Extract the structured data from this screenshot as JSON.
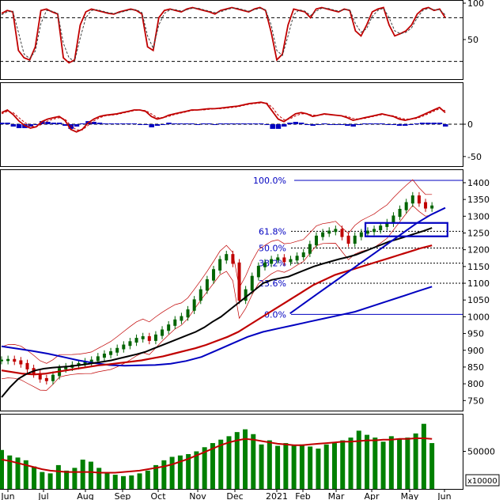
{
  "chart_data": [
    {
      "type": "line",
      "panel": "stochastic-oscillator",
      "ylim": [
        0,
        100
      ],
      "y_ticks": [
        50,
        100
      ],
      "reference_levels": [
        20,
        80
      ],
      "series": [
        {
          "color": "#c00000",
          "values": [
            86,
            90,
            88,
            35,
            25,
            22,
            40,
            90,
            92,
            88,
            85,
            25,
            18,
            22,
            70,
            88,
            92,
            90,
            88,
            86,
            85,
            88,
            90,
            92,
            90,
            85,
            40,
            35,
            80,
            90,
            92,
            90,
            88,
            92,
            94,
            92,
            90,
            88,
            85,
            90,
            92,
            94,
            92,
            90,
            88,
            92,
            94,
            90,
            60,
            22,
            30,
            70,
            92,
            90,
            88,
            80,
            92,
            94,
            92,
            90,
            88,
            92,
            90,
            62,
            55,
            70,
            88,
            92,
            94,
            70,
            55,
            58,
            62,
            70,
            85,
            92,
            94,
            90,
            92,
            80
          ]
        },
        {
          "color": "#404040",
          "dash": true,
          "values": [
            84,
            88,
            89,
            60,
            30,
            24,
            34,
            72,
            90,
            89,
            86,
            45,
            25,
            20,
            52,
            80,
            90,
            91,
            89,
            87,
            86,
            87,
            89,
            91,
            91,
            87,
            55,
            38,
            70,
            86,
            91,
            91,
            89,
            91,
            93,
            93,
            91,
            89,
            87,
            88,
            91,
            93,
            93,
            91,
            89,
            91,
            93,
            91,
            70,
            35,
            28,
            55,
            84,
            91,
            89,
            83,
            89,
            93,
            93,
            91,
            89,
            91,
            91,
            72,
            60,
            65,
            82,
            90,
            93,
            80,
            62,
            58,
            60,
            66,
            80,
            90,
            93,
            91,
            91,
            84
          ]
        }
      ]
    },
    {
      "type": "area",
      "panel": "macd",
      "ylim": [
        -60,
        60
      ],
      "y_ticks": [
        0,
        -50
      ],
      "series": [
        {
          "color": "#c00000",
          "values": [
            18,
            22,
            15,
            5,
            -2,
            -6,
            -4,
            4,
            8,
            10,
            12,
            6,
            -8,
            -12,
            -8,
            2,
            8,
            12,
            14,
            15,
            16,
            18,
            20,
            22,
            22,
            20,
            12,
            8,
            10,
            14,
            16,
            18,
            20,
            22,
            22,
            23,
            24,
            24,
            25,
            26,
            27,
            28,
            30,
            32,
            33,
            34,
            32,
            20,
            8,
            4,
            10,
            16,
            18,
            16,
            12,
            14,
            16,
            15,
            14,
            13,
            10,
            6,
            8,
            10,
            12,
            14,
            16,
            14,
            12,
            8,
            6,
            8,
            10,
            14,
            18,
            22,
            26,
            18
          ]
        },
        {
          "color": "#c00000",
          "dash": true,
          "values": [
            16,
            20,
            18,
            10,
            3,
            -3,
            -4,
            0,
            5,
            8,
            10,
            8,
            -2,
            -9,
            -9,
            -2,
            5,
            10,
            13,
            14,
            15,
            17,
            19,
            21,
            22,
            21,
            16,
            10,
            10,
            12,
            15,
            17,
            19,
            21,
            22,
            22,
            23,
            24,
            24,
            25,
            26,
            27,
            29,
            31,
            32,
            33,
            33,
            26,
            14,
            7,
            8,
            13,
            16,
            16,
            14,
            14,
            15,
            15,
            14,
            13,
            12,
            9,
            8,
            9,
            11,
            13,
            15,
            14,
            13,
            10,
            8,
            8,
            9,
            12,
            16,
            20,
            24,
            21
          ]
        },
        {
          "color": "#0000c0",
          "values": [
            2,
            2,
            -3,
            -5,
            -5,
            -3,
            0,
            4,
            3,
            2,
            2,
            -2,
            -6,
            -3,
            1,
            4,
            3,
            2,
            1,
            1,
            1,
            1,
            1,
            1,
            0,
            -1,
            -4,
            -2,
            0,
            2,
            1,
            1,
            1,
            1,
            0,
            1,
            1,
            0,
            1,
            1,
            1,
            1,
            1,
            1,
            1,
            1,
            -1,
            -6,
            -6,
            -3,
            2,
            3,
            2,
            0,
            -2,
            0,
            1,
            0,
            0,
            0,
            -2,
            -3,
            0,
            1,
            1,
            1,
            1,
            0,
            -1,
            -2,
            -2,
            0,
            1,
            2,
            2,
            2,
            2,
            -3
          ]
        }
      ]
    },
    {
      "type": "line",
      "panel": "price",
      "ylim": [
        720,
        1440
      ],
      "y_ticks": [
        750,
        800,
        850,
        900,
        950,
        1000,
        1050,
        1100,
        1150,
        1200,
        1250,
        1300,
        1350,
        1400
      ],
      "x_tick_labels": [
        "Jun",
        "Jul",
        "Aug",
        "Sep",
        "Oct",
        "Nov",
        "Dec",
        "2021",
        "Feb",
        "Mar",
        "Apr",
        "May",
        "Jun"
      ],
      "fibonacci_levels": [
        {
          "label": "100.0%",
          "value": 1407
        },
        {
          "label": "61.8%",
          "value": 1255
        },
        {
          "label": "50.0%",
          "value": 1205
        },
        {
          "label": "38.2%",
          "value": 1160
        },
        {
          "label": "23.6%",
          "value": 1100
        },
        {
          "label": "0.0%",
          "value": 1007
        }
      ],
      "series": [
        {
          "color": "#006400",
          "values": [
            870,
            872,
            868,
            860,
            845,
            830,
            815,
            810,
            825,
            845,
            850,
            855,
            860,
            865,
            870,
            880,
            888,
            895,
            905,
            915,
            925,
            935,
            940,
            930,
            945,
            960,
            975,
            990,
            1000,
            1020,
            1050,
            1080,
            1110,
            1140,
            1170,
            1185,
            1160,
            1050,
            1080,
            1120,
            1150,
            1160,
            1170,
            1175,
            1165,
            1170,
            1180,
            1190,
            1215,
            1240,
            1250,
            1255,
            1260,
            1240,
            1220,
            1240,
            1250,
            1255,
            1260,
            1270,
            1280,
            1300,
            1320,
            1340,
            1360,
            1340,
            1325,
            1330
          ]
        },
        {
          "color": "#000000",
          "values": [
            760,
            790,
            815,
            830,
            840,
            845,
            848,
            850,
            852,
            855,
            858,
            862,
            866,
            870,
            876,
            882,
            888,
            895,
            905,
            915,
            925,
            935,
            945,
            955,
            968,
            985,
            1000,
            1020,
            1040,
            1060,
            1080,
            1100,
            1110,
            1115,
            1120,
            1130,
            1140,
            1150,
            1158,
            1165,
            1172,
            1178,
            1185,
            1195,
            1205,
            1215,
            1225,
            1232,
            1240,
            1248,
            1256,
            1265
          ]
        },
        {
          "color": "#c00000",
          "values": [
            840,
            835,
            830,
            828,
            830,
            835,
            840,
            845,
            850,
            855,
            858,
            862,
            866,
            870,
            876,
            882,
            890,
            898,
            906,
            916,
            928,
            940,
            955,
            975,
            995,
            1015,
            1035,
            1055,
            1075,
            1095,
            1110,
            1125,
            1135,
            1145,
            1155,
            1165,
            1175,
            1185,
            1195,
            1205,
            1213
          ]
        },
        {
          "color": "#0000c0",
          "values": [
            912,
            905,
            898,
            890,
            880,
            870,
            862,
            856,
            854,
            855,
            856,
            860,
            868,
            880,
            900,
            920,
            940,
            955,
            965,
            975,
            985,
            995,
            1005,
            1015,
            1030,
            1045,
            1060,
            1075,
            1090
          ]
        },
        {
          "color": "#0000c0",
          "name_hint": "trendline",
          "values": [
            1010,
            1040,
            1070,
            1100,
            1130,
            1160,
            1190,
            1220,
            1250,
            1280,
            1305,
            1325
          ]
        }
      ]
    },
    {
      "type": "bar",
      "panel": "volume",
      "y_ticks": [
        50000
      ],
      "y_unit_label": "x10000",
      "series": [
        {
          "color": "#008000",
          "values": [
            52000,
            44000,
            41000,
            37000,
            28000,
            20000,
            18000,
            30000,
            22000,
            26000,
            38000,
            35000,
            26000,
            20000,
            16000,
            14000,
            15000,
            18000,
            22000,
            30000,
            37000,
            42000,
            44000,
            46000,
            50000,
            56000,
            62000,
            67000,
            72000,
            78000,
            82000,
            75000,
            60000,
            66000,
            58000,
            62000,
            58000,
            60000,
            57000,
            54000,
            60000,
            62000,
            66000,
            70000,
            80000,
            74000,
            70000,
            64000,
            72000,
            68000,
            70000,
            76000,
            90000,
            62000
          ]
        },
        {
          "color": "#c00000",
          "values": [
            38000,
            36000,
            33000,
            30000,
            27000,
            24000,
            22000,
            21000,
            20000,
            20000,
            20000,
            20000,
            19000,
            19000,
            19000,
            20000,
            21000,
            22000,
            24000,
            26000,
            28000,
            31000,
            35000,
            39000,
            44000,
            49000,
            54000,
            59000,
            63000,
            66000,
            68000,
            67000,
            65000,
            63000,
            61000,
            60000,
            59000,
            59000,
            60000,
            61000,
            62000,
            63000,
            64000,
            64000,
            65000,
            66000,
            66000,
            67000,
            67000,
            68000,
            68000,
            69000,
            69000,
            68000
          ]
        }
      ]
    }
  ]
}
